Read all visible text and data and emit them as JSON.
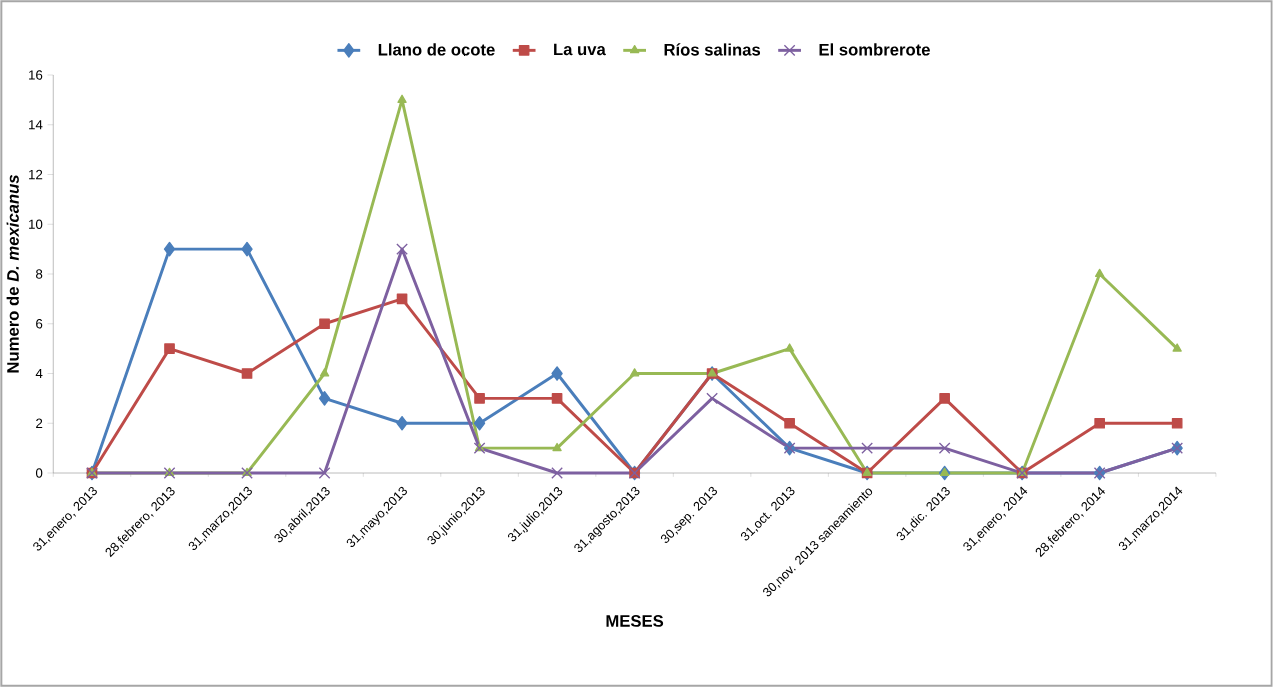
{
  "chart_data": {
    "type": "line",
    "xlabel": "MESES",
    "ylabel": "Numero de *D. mexicanus*",
    "categories": [
      "31,enero, 2013",
      "28,febrero, 2013",
      "31,marzo,2013",
      "30,abril,2013",
      "31,mayo,2013",
      "30,junio,2013",
      "31,julio,2013",
      "31,agosto,2013",
      "30,sep. 2013",
      "31,oct. 2013",
      "30,nov. 2013 saneamiento",
      "31,dic. 2013",
      "31,enero, 2014",
      "28,febrero, 2014",
      "31,marzo,2014"
    ],
    "series": [
      {
        "name": "Llano de ocote",
        "color": "#4a7ebb",
        "marker": "diamond",
        "values": [
          0,
          9,
          9,
          3,
          2,
          2,
          4,
          0,
          4,
          1,
          0,
          0,
          0,
          0,
          1
        ]
      },
      {
        "name": "La uva",
        "color": "#be4b48",
        "marker": "square",
        "values": [
          0,
          5,
          4,
          6,
          7,
          3,
          3,
          0,
          4,
          2,
          0,
          3,
          0,
          2,
          2
        ]
      },
      {
        "name": "Ríos salinas",
        "color": "#98b954",
        "marker": "triangle",
        "values": [
          0,
          0,
          0,
          4,
          15,
          1,
          1,
          4,
          4,
          5,
          0,
          0,
          0,
          8,
          5
        ]
      },
      {
        "name": "El sombrerote",
        "color": "#7d60a0",
        "marker": "cross",
        "values": [
          0,
          0,
          0,
          0,
          9,
          1,
          0,
          0,
          3,
          1,
          1,
          1,
          0,
          0,
          1
        ]
      }
    ],
    "ylim": [
      0,
      16
    ],
    "yticks": [
      0,
      2,
      4,
      6,
      8,
      10,
      12,
      14,
      16
    ],
    "grid": false,
    "legend": "top",
    "line_style": "solid"
  }
}
